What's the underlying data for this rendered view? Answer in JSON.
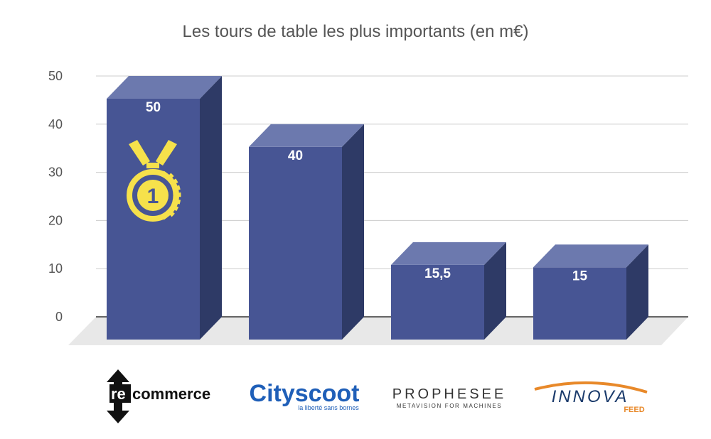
{
  "chart_data": {
    "type": "bar",
    "title": "Les tours de table les plus importants (en m€)",
    "categories": [
      "recommerce",
      "Cityscoot",
      "Prophesee",
      "Innova Feed"
    ],
    "values": [
      50,
      40,
      15.5,
      15
    ],
    "value_labels": [
      "50",
      "40",
      "15,5",
      "15"
    ],
    "ylim": [
      0,
      50
    ],
    "yticks": [
      0,
      10,
      20,
      30,
      40,
      50
    ],
    "grid": true,
    "style": "3d",
    "colors": {
      "front": "#475594",
      "top": "#6c79ae",
      "side": "#2e3a66",
      "floor": "#e8e8e8",
      "grid": "#cccccc",
      "medal": "#f6e14b"
    }
  },
  "logos": {
    "recommerce": {
      "re": "re",
      "rest": "commerce"
    },
    "cityscoot": {
      "name": "Cityscoot",
      "tagline": "la liberté sans bornes"
    },
    "prophesee": {
      "name": "PROPHESEE",
      "tagline": "METAVISION FOR MACHINES"
    },
    "innova": {
      "name": "INNOVA",
      "sub": "FEED"
    }
  },
  "badge": {
    "rank": "1"
  }
}
